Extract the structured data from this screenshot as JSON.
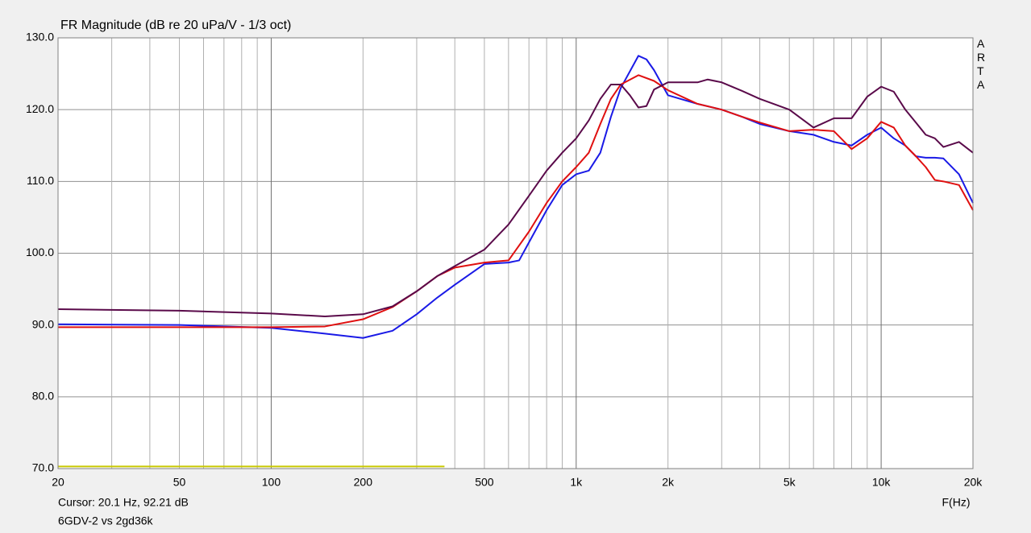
{
  "chart_data": {
    "type": "line",
    "title": "FR Magnitude (dB re 20 uPa/V - 1/3 oct)",
    "side_label": "ARTA",
    "cursor_text": "Cursor: 20.1 Hz, 92.21 dB",
    "caption": "6GDV-2 vs 2gd36k",
    "x_label": "F(Hz)",
    "xscale": "log",
    "grid": true,
    "xlim": [
      20,
      20000
    ],
    "ylim": [
      70,
      130
    ],
    "yticks": [
      {
        "value": 70,
        "label": "70.0"
      },
      {
        "value": 80,
        "label": "80.0"
      },
      {
        "value": 90,
        "label": "90.0"
      },
      {
        "value": 100,
        "label": "100.0"
      },
      {
        "value": 110,
        "label": "110.0"
      },
      {
        "value": 120,
        "label": "120.0"
      },
      {
        "value": 130,
        "label": "130.0"
      }
    ],
    "xticks": [
      20,
      50,
      100,
      200,
      500,
      {
        "value": 1000,
        "label": "1k"
      },
      {
        "value": 2000,
        "label": "2k"
      },
      {
        "value": 5000,
        "label": "5k"
      },
      {
        "value": 10000,
        "label": "10k"
      },
      {
        "value": 20000,
        "label": "20k"
      }
    ],
    "xgrid": [
      30,
      40,
      60,
      70,
      80,
      90,
      300,
      400,
      600,
      700,
      800,
      900,
      3000,
      4000,
      6000,
      7000,
      8000,
      9000
    ],
    "series": [
      {
        "color": "#c8c800",
        "x": [
          20,
          370
        ],
        "values": [
          70.3,
          70.3
        ]
      },
      {
        "color": "#1a1ae6",
        "x": [
          20,
          50,
          100,
          150,
          200,
          250,
          300,
          350,
          400,
          500,
          600,
          650,
          700,
          800,
          900,
          1000,
          1100,
          1200,
          1300,
          1400,
          1600,
          1700,
          1800,
          2000,
          2500,
          3000,
          3500,
          4000,
          5000,
          6000,
          7000,
          8000,
          9000,
          10000,
          11000,
          12000,
          13000,
          14000,
          15000,
          16000,
          18000,
          20000
        ],
        "values": [
          90.1,
          90,
          89.6,
          88.8,
          88.2,
          89.2,
          91.5,
          93.8,
          95.6,
          98.5,
          98.7,
          99,
          101.5,
          106,
          109.5,
          111,
          111.5,
          114,
          119,
          123,
          127.5,
          127,
          125.5,
          122,
          120.8,
          120,
          119,
          118,
          117,
          116.5,
          115.5,
          115,
          116.5,
          117.5,
          116,
          115,
          113.5,
          113.3,
          113.3,
          113.2,
          111,
          107
        ]
      },
      {
        "color": "#e01010",
        "x": [
          20,
          50,
          100,
          150,
          200,
          250,
          300,
          350,
          400,
          500,
          600,
          700,
          800,
          900,
          1000,
          1100,
          1200,
          1300,
          1400,
          1600,
          1800,
          2000,
          2500,
          3000,
          3500,
          4000,
          5000,
          6000,
          7000,
          8000,
          9000,
          10000,
          11000,
          12000,
          13000,
          14000,
          15000,
          16000,
          18000,
          20000
        ],
        "values": [
          89.7,
          89.7,
          89.7,
          89.8,
          90.8,
          92.5,
          94.7,
          96.8,
          98,
          98.7,
          99,
          103,
          107,
          110,
          112,
          114,
          118,
          121.5,
          123.5,
          124.8,
          124,
          122.7,
          120.8,
          120,
          119,
          118.2,
          117,
          117.2,
          117,
          114.5,
          116,
          118.3,
          117.5,
          115,
          113.5,
          112,
          110.2,
          110,
          109.5,
          106
        ]
      },
      {
        "color": "#5a0a4a",
        "x": [
          20,
          50,
          100,
          150,
          200,
          250,
          300,
          350,
          400,
          500,
          600,
          700,
          800,
          900,
          1000,
          1100,
          1200,
          1300,
          1400,
          1500,
          1600,
          1700,
          1800,
          2000,
          2500,
          2700,
          3000,
          3500,
          4000,
          5000,
          6000,
          7000,
          8000,
          9000,
          10000,
          11000,
          12000,
          13000,
          14000,
          15000,
          16000,
          18000,
          20000
        ],
        "values": [
          92.2,
          92,
          91.6,
          91.2,
          91.5,
          92.6,
          94.7,
          96.8,
          98.2,
          100.5,
          104,
          108,
          111.5,
          114,
          116,
          118.5,
          121.5,
          123.5,
          123.5,
          122,
          120.3,
          120.5,
          122.8,
          123.8,
          123.8,
          124.2,
          123.8,
          122.6,
          121.5,
          120,
          117.5,
          118.8,
          118.8,
          121.8,
          123.2,
          122.5,
          120,
          118.2,
          116.5,
          116,
          114.8,
          115.5,
          114
        ]
      }
    ]
  }
}
